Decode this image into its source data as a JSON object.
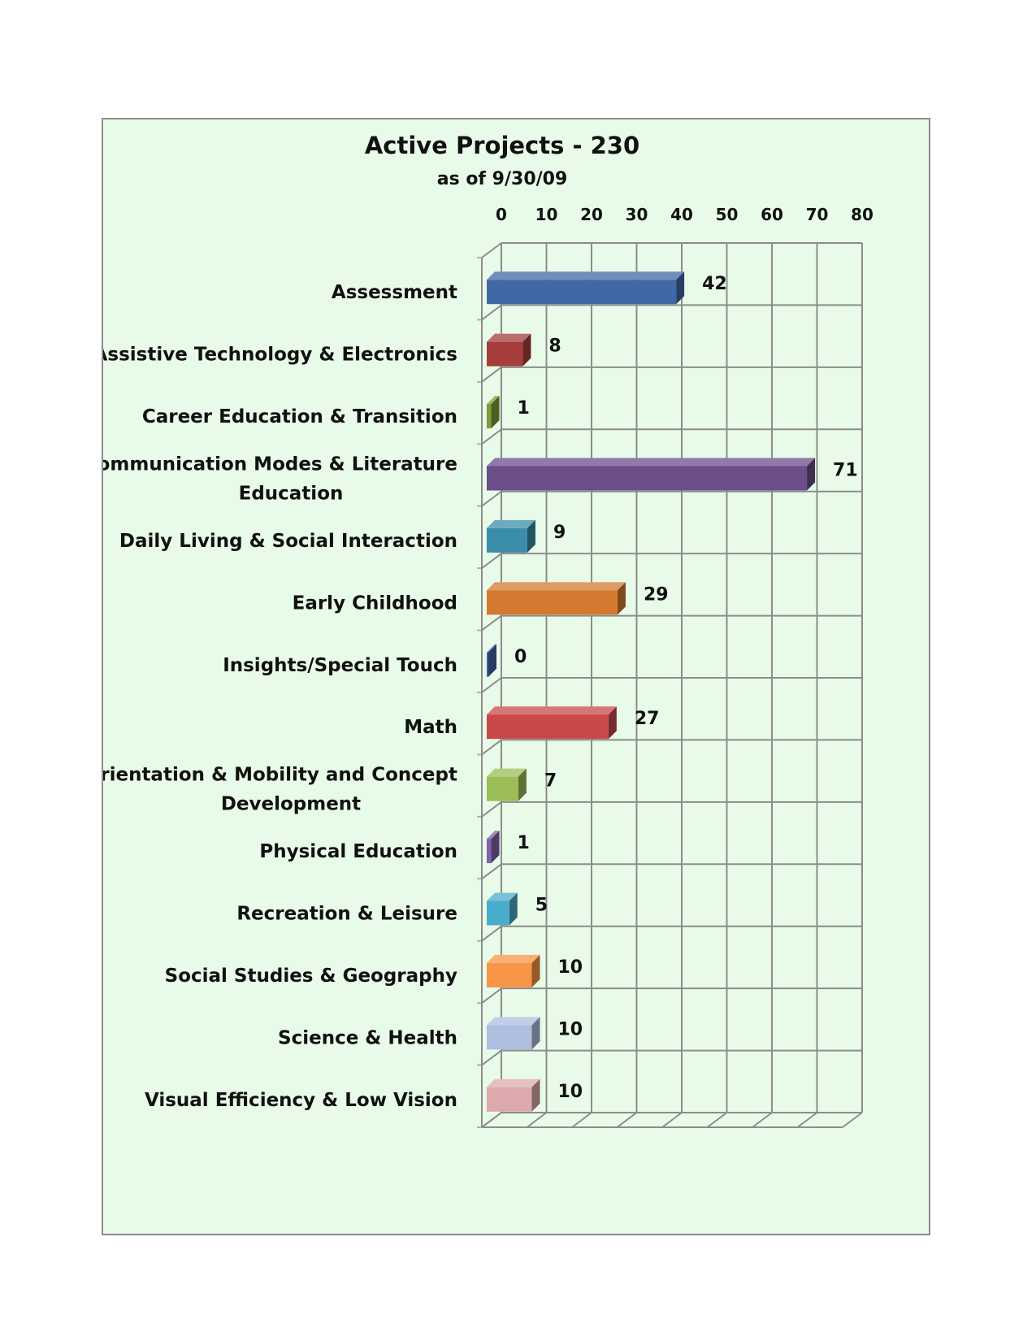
{
  "chart_data": {
    "type": "bar",
    "orientation": "horizontal",
    "title": "Active Projects - 230",
    "subtitle": "as of 9/30/09",
    "xlim": [
      0,
      80
    ],
    "xticks": [
      0,
      10,
      20,
      30,
      40,
      50,
      60,
      70,
      80
    ],
    "x_axis_position": "top",
    "grid": true,
    "legend": "none",
    "categories": [
      [
        "Assessment"
      ],
      [
        "Assistive Technology & Electronics"
      ],
      [
        "Career Education & Transition"
      ],
      [
        "Communication Modes & Literature",
        "Education"
      ],
      [
        "Daily Living & Social Interaction"
      ],
      [
        "Early Childhood"
      ],
      [
        "Insights/Special Touch"
      ],
      [
        "Math"
      ],
      [
        "Orientation & Mobility and Concept",
        "Development"
      ],
      [
        "Physical Education"
      ],
      [
        "Recreation & Leisure"
      ],
      [
        "Social Studies & Geography"
      ],
      [
        "Science & Health"
      ],
      [
        "Visual Efficiency & Low Vision"
      ]
    ],
    "values": [
      42,
      8,
      1,
      71,
      9,
      29,
      0,
      27,
      7,
      1,
      5,
      10,
      10,
      10
    ],
    "value_labels": [
      "42",
      "8",
      "1",
      "71",
      "9",
      "29",
      "0",
      "27",
      "7",
      "1",
      "5",
      "10",
      "10",
      "10"
    ],
    "colors": [
      "#4168a6",
      "#a63d3b",
      "#7c9c3a",
      "#6b4e8a",
      "#3a8ea9",
      "#d4792f",
      "#3f61a3",
      "#c9484a",
      "#9bbd57",
      "#8262a8",
      "#4aaccc",
      "#f79646",
      "#adbedf",
      "#dcaaac"
    ],
    "background": "#e8fbe8"
  }
}
